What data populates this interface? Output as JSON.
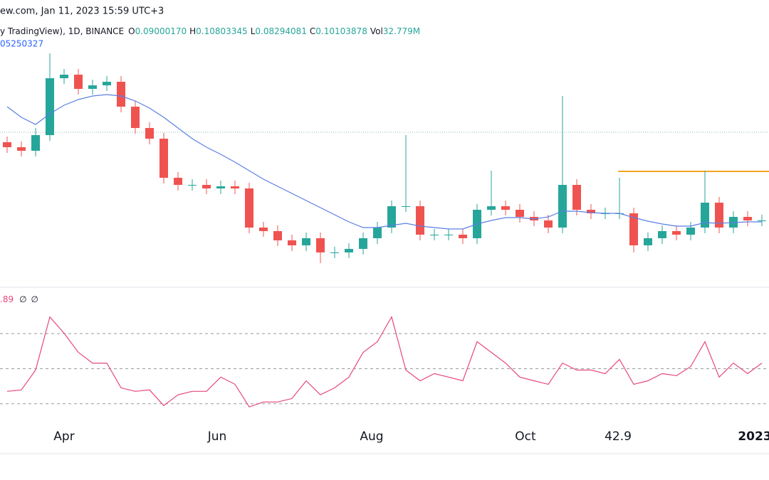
{
  "header": {
    "source": "ew.com, Jan 11, 2023 15:59 UTC+3",
    "symbol": "y TradingView), 1D, BINANCE",
    "ohlc": [
      {
        "label": "O",
        "value": "0.09000170"
      },
      {
        "label": "H",
        "value": "0.10803345"
      },
      {
        "label": "L",
        "value": "0.08294081"
      },
      {
        "label": "C",
        "value": "0.10103878"
      }
    ],
    "volume": {
      "label": "Vol",
      "value": "32.779M"
    },
    "ma_value": "05250327",
    "rsi_legend": [
      ".89",
      "∅",
      "∅"
    ]
  },
  "chart_data": {
    "type": "candlestick",
    "xlim": [
      -0.5,
      53.5
    ],
    "xticks": [
      {
        "value": 4,
        "label": "Apr"
      },
      {
        "value": 14.75,
        "label": "Jun"
      },
      {
        "value": 25.6,
        "label": "Aug"
      },
      {
        "value": 36.4,
        "label": "Oct"
      },
      42.9,
      {
        "value": 52.5,
        "label": "2023"
      }
    ],
    "ylim": [
      0.083,
      0.163
    ],
    "up_color": "#26a69a",
    "down_color": "#ef5350",
    "open": [
      0.123,
      0.1216,
      0.1206,
      0.125,
      0.141,
      0.142,
      0.138,
      0.139,
      0.14,
      0.133,
      0.127,
      0.124,
      0.113,
      0.111,
      0.111,
      0.11,
      0.1106,
      0.11,
      0.099,
      0.098,
      0.0954,
      0.094,
      0.096,
      0.092,
      0.092,
      0.093,
      0.096,
      0.099,
      0.105,
      0.105,
      0.097,
      0.097,
      0.097,
      0.096,
      0.104,
      0.105,
      0.104,
      0.102,
      0.101,
      0.099,
      0.111,
      0.104,
      0.103,
      0.103,
      0.103,
      0.094,
      0.096,
      0.098,
      0.097,
      0.099,
      0.106,
      0.099,
      0.102,
      0.101
    ],
    "high": [
      0.1246,
      0.1232,
      0.127,
      0.148,
      0.1436,
      0.1436,
      0.1406,
      0.1416,
      0.1416,
      0.1346,
      0.1286,
      0.1256,
      0.1146,
      0.1126,
      0.1126,
      0.1122,
      0.1122,
      0.1116,
      0.1006,
      0.0996,
      0.097,
      0.0976,
      0.0976,
      0.0936,
      0.0946,
      0.0976,
      0.1006,
      0.1066,
      0.125,
      0.1066,
      0.0986,
      0.0986,
      0.0986,
      0.1056,
      0.115,
      0.1066,
      0.1056,
      0.1036,
      0.1026,
      0.136,
      0.1126,
      0.1056,
      0.1046,
      0.113,
      0.1046,
      0.0976,
      0.0996,
      0.0996,
      0.1006,
      0.115,
      0.1076,
      0.1036,
      0.1036,
      0.1026
    ],
    "low": [
      0.12,
      0.119,
      0.119,
      0.1234,
      0.1394,
      0.1364,
      0.1364,
      0.1374,
      0.1314,
      0.1254,
      0.1224,
      0.1114,
      0.1094,
      0.1094,
      0.1084,
      0.1084,
      0.1084,
      0.0974,
      0.0964,
      0.0938,
      0.0924,
      0.0924,
      0.089,
      0.0904,
      0.0904,
      0.0914,
      0.0944,
      0.0974,
      0.1034,
      0.0954,
      0.0954,
      0.0954,
      0.0944,
      0.0944,
      0.1024,
      0.1024,
      0.1004,
      0.0994,
      0.0974,
      0.0974,
      0.1024,
      0.1014,
      0.1014,
      0.1014,
      0.092,
      0.0924,
      0.0944,
      0.0954,
      0.0954,
      0.0974,
      0.0974,
      0.0974,
      0.0994,
      0.0994
    ],
    "close": [
      0.1216,
      0.1206,
      0.125,
      0.141,
      0.142,
      0.138,
      0.139,
      0.14,
      0.133,
      0.127,
      0.124,
      0.113,
      0.111,
      0.111,
      0.11,
      0.1106,
      0.11,
      0.099,
      0.098,
      0.0954,
      0.094,
      0.096,
      0.092,
      0.092,
      0.093,
      0.096,
      0.099,
      0.105,
      0.105,
      0.097,
      0.097,
      0.097,
      0.096,
      0.104,
      0.105,
      0.104,
      0.102,
      0.101,
      0.099,
      0.111,
      0.104,
      0.103,
      0.103,
      0.103,
      0.094,
      0.096,
      0.098,
      0.097,
      0.099,
      0.106,
      0.099,
      0.102,
      0.101,
      0.101
    ],
    "ma": {
      "color": "#5a7fe6",
      "values": [
        0.133,
        0.13,
        0.128,
        0.131,
        0.1334,
        0.135,
        0.136,
        0.1364,
        0.136,
        0.1346,
        0.1326,
        0.13,
        0.127,
        0.124,
        0.1216,
        0.1196,
        0.1174,
        0.115,
        0.1126,
        0.1106,
        0.1086,
        0.1066,
        0.1046,
        0.1026,
        0.1006,
        0.099,
        0.099,
        0.0996,
        0.1002,
        0.0994,
        0.099,
        0.0986,
        0.0986,
        0.1,
        0.101,
        0.1018,
        0.1018,
        0.1014,
        0.102,
        0.1036,
        0.1036,
        0.1032,
        0.103,
        0.103,
        0.1018,
        0.1008,
        0.1,
        0.0994,
        0.0994,
        0.1004,
        0.1002,
        0.1004,
        0.1006,
        0.1006
      ]
    },
    "levels": [
      {
        "value": 0.1258,
        "color": "#8fbfb5",
        "style": "dotted"
      },
      {
        "value": 0.1148,
        "color": "#f5a623",
        "style": "solid"
      }
    ],
    "rsi": {
      "color": "#e6477e",
      "ylim": [
        21,
        96
      ],
      "yticks": [
        70,
        50,
        30
      ],
      "values": [
        37.1,
        37.9,
        49.2,
        79.5,
        70.2,
        59.3,
        53.2,
        53.2,
        39.1,
        37.1,
        37.9,
        29,
        35.1,
        37.1,
        37.1,
        45.2,
        41.1,
        28.2,
        31,
        31,
        33,
        43.1,
        35.1,
        39.1,
        45.2,
        59.3,
        65.4,
        79.5,
        49.2,
        43.1,
        47.2,
        45.2,
        43.1,
        65.4,
        59.3,
        53.2,
        45.2,
        43.1,
        41.1,
        53.2,
        49.2,
        49.2,
        47.2,
        55.3,
        41.1,
        43.1,
        47.2,
        46,
        51.2,
        65.4,
        45.2,
        53.2,
        47.2,
        53.2
      ]
    }
  }
}
